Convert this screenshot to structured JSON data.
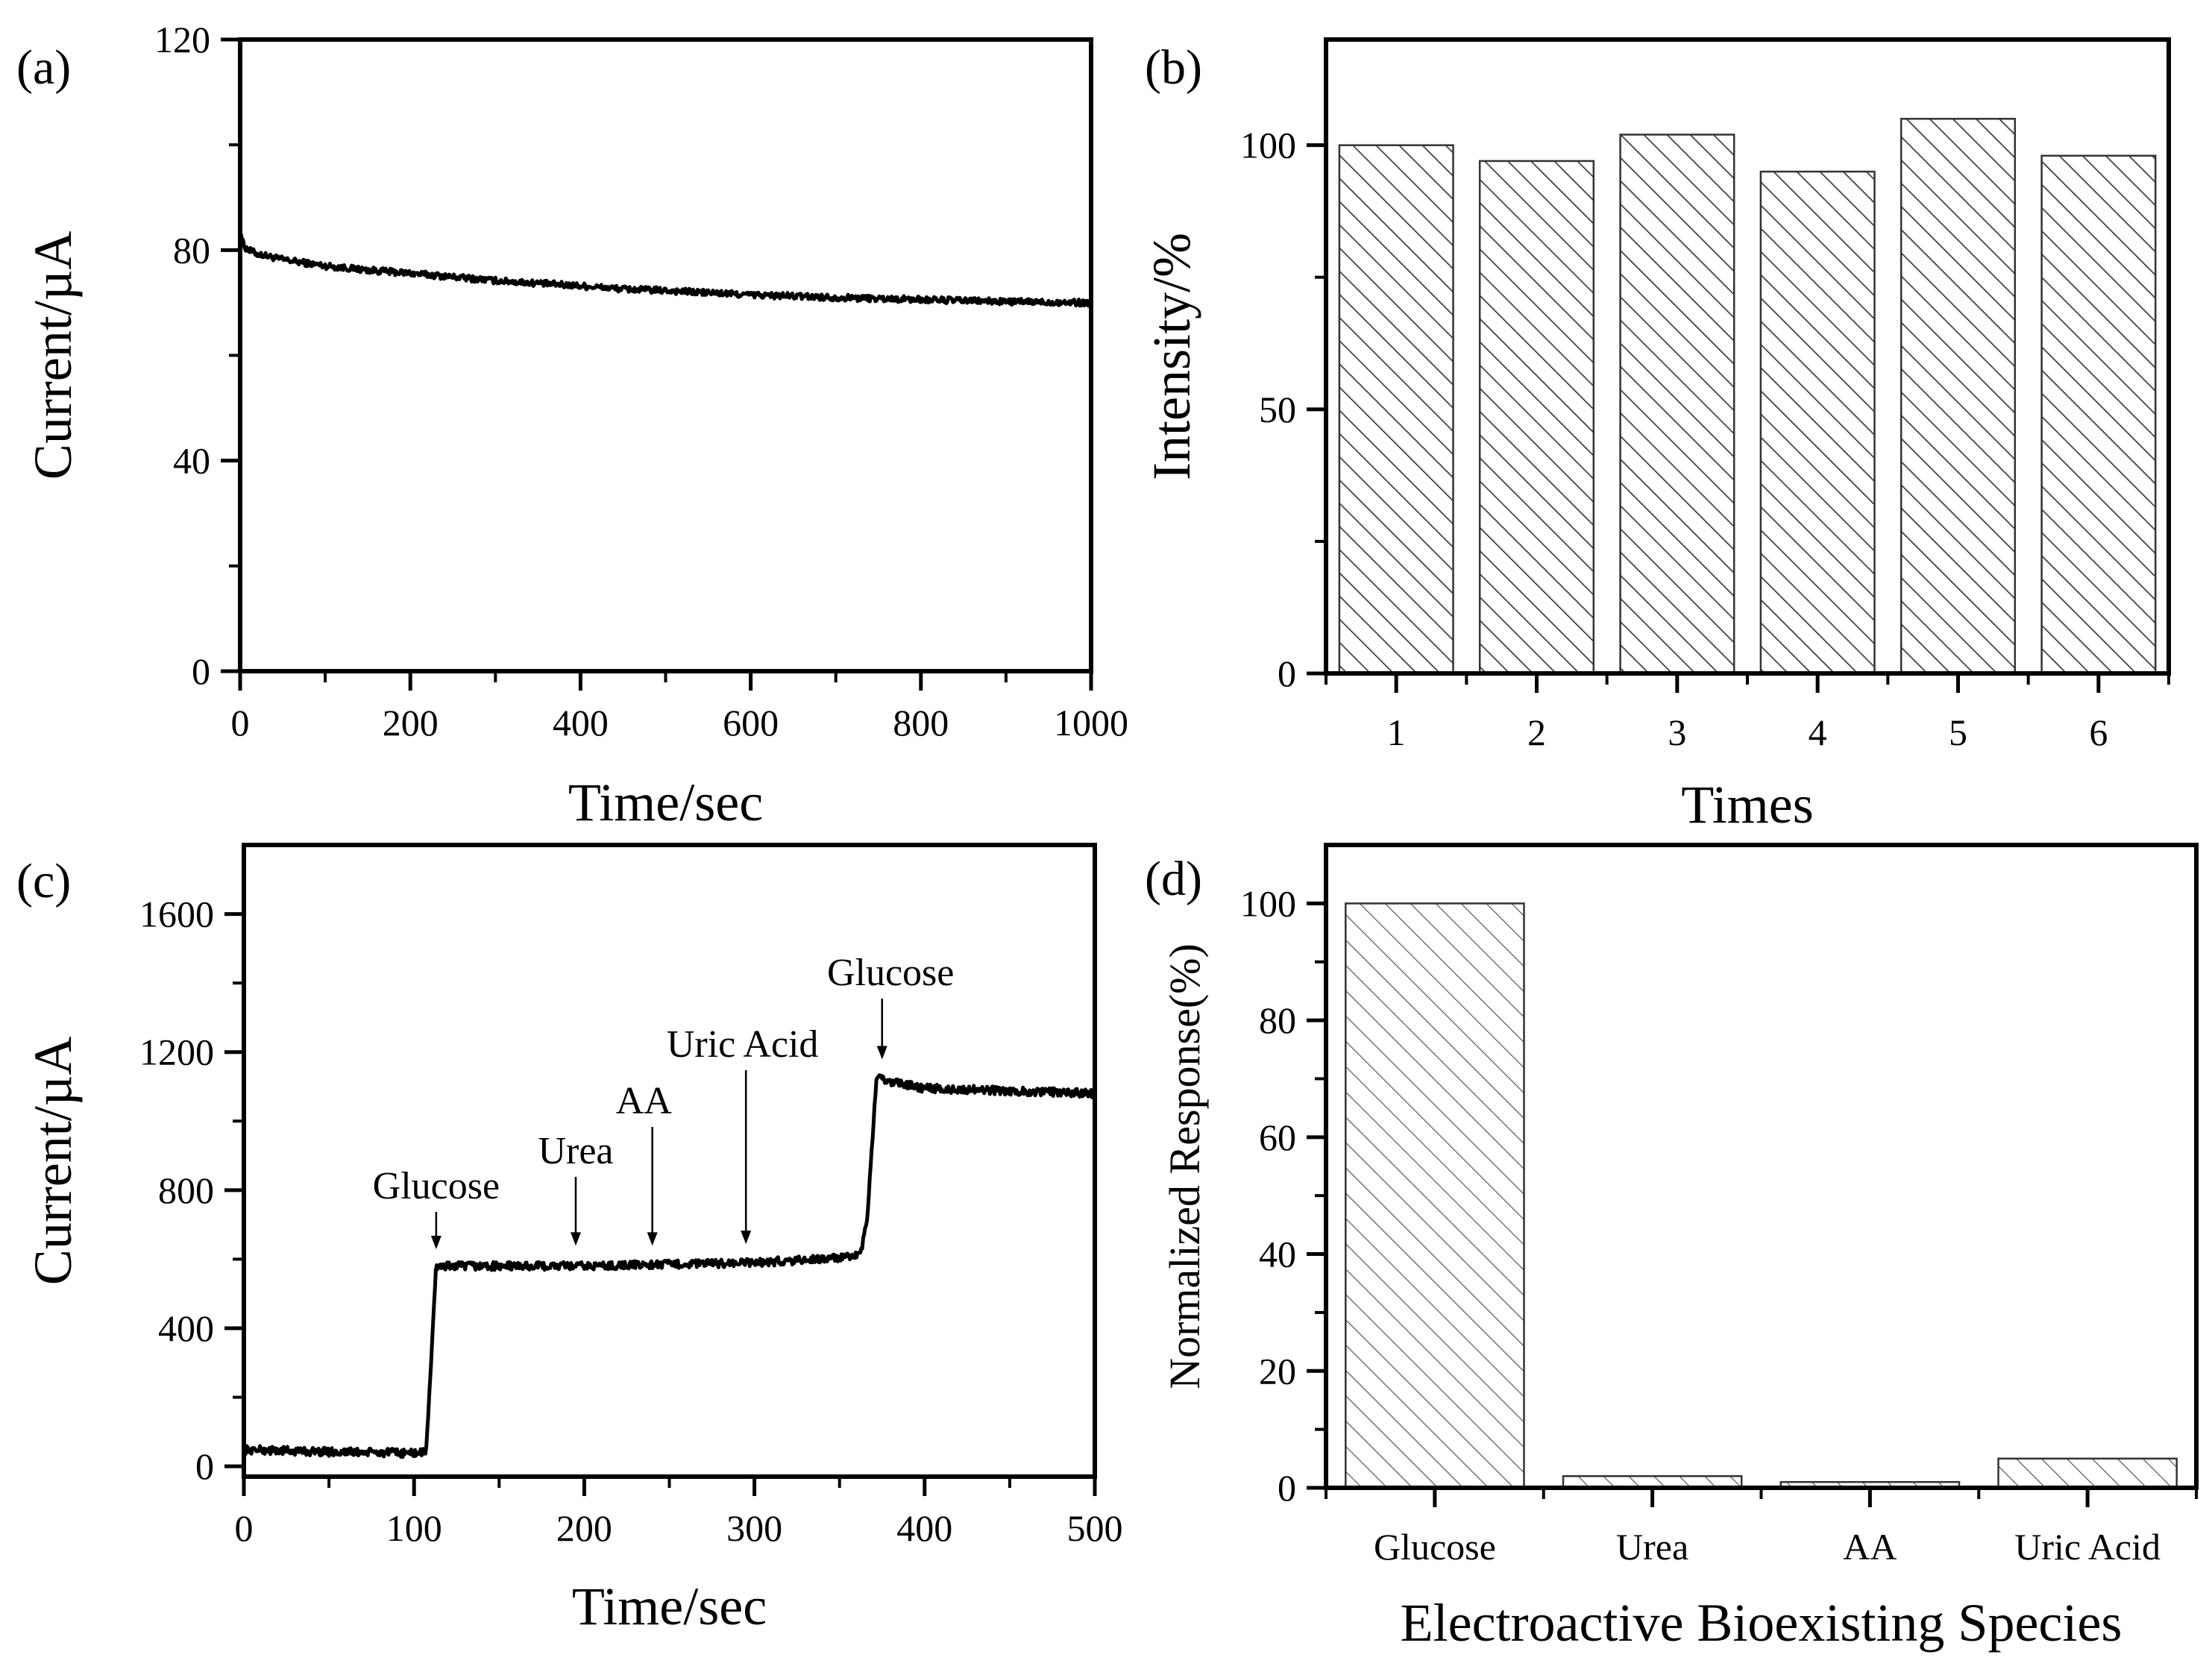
{
  "figure": {
    "title": ""
  },
  "colors": {
    "ink": "#000000",
    "bar_fill": "#ffffff",
    "hatch": "#3a3a3a",
    "light_hatch": "#555555"
  },
  "chart_data": [
    {
      "id": "a",
      "type": "line",
      "panel_label": "(a)",
      "xlabel": "Time/sec",
      "ylabel": "Current/µA",
      "xlim": [
        0,
        1000
      ],
      "ylim": [
        0,
        120
      ],
      "xticks": [
        0,
        200,
        400,
        600,
        800,
        1000
      ],
      "yticks": [
        0,
        40,
        80,
        120
      ],
      "series": [
        {
          "name": "current",
          "x": [
            0,
            3,
            6,
            10,
            20,
            50,
            100,
            150,
            200,
            250,
            300,
            400,
            450,
            500,
            600,
            700,
            800,
            900,
            1000
          ],
          "y": [
            84,
            81.5,
            80.5,
            80,
            79.3,
            78.2,
            77,
            76.2,
            75.6,
            74.9,
            74.2,
            73.2,
            72.6,
            72.3,
            71.5,
            71,
            70.6,
            70.2,
            70
          ],
          "noise": 0.6
        }
      ]
    },
    {
      "id": "b",
      "type": "bar",
      "panel_label": "(b)",
      "xlabel": "Times",
      "ylabel": "Intensity/%",
      "categories": [
        "1",
        "2",
        "3",
        "4",
        "5",
        "6"
      ],
      "values": [
        100,
        97,
        102,
        95,
        105,
        98
      ],
      "ylim": [
        0,
        120
      ],
      "yticks": [
        0,
        50,
        100
      ]
    },
    {
      "id": "c",
      "type": "line",
      "panel_label": "(c)",
      "xlabel": "Time/sec",
      "ylabel": "Current/µA",
      "xlim": [
        0,
        500
      ],
      "ylim": [
        -30,
        1800
      ],
      "xticks": [
        0,
        100,
        200,
        300,
        400,
        500
      ],
      "yticks": [
        0,
        400,
        800,
        1200,
        1600
      ],
      "series": [
        {
          "name": "current",
          "x": [
            0,
            50,
            100,
            107,
            110,
            113,
            200,
            250,
            300,
            355,
            362,
            366,
            370,
            372,
            375,
            400,
            500
          ],
          "y": [
            48,
            42,
            38,
            40,
            300,
            580,
            580,
            585,
            590,
            605,
            610,
            700,
            1000,
            1130,
            1120,
            1095,
            1080
          ],
          "noise": 12
        }
      ],
      "annotations": [
        {
          "text": "Glucose",
          "x": 113,
          "y": 590,
          "label_dx": 0
        },
        {
          "text": "Urea",
          "x": 195,
          "y": 600,
          "label_dx": 0
        },
        {
          "text": "AA",
          "x": 240,
          "y": 600,
          "label_dx": -5
        },
        {
          "text": "Uric Acid",
          "x": 295,
          "y": 605,
          "label_dx": -2
        },
        {
          "text": "Glucose",
          "x": 375,
          "y": 1140,
          "label_dx": 5
        }
      ]
    },
    {
      "id": "d",
      "type": "bar",
      "panel_label": "(d)",
      "xlabel": "Electroactive Bioexisting Species",
      "ylabel": "Normalized Response(%)",
      "categories": [
        "Glucose",
        "Urea",
        "AA",
        "Uric Acid"
      ],
      "values": [
        100,
        2,
        1,
        5
      ],
      "ylim": [
        0,
        110
      ],
      "yticks": [
        0,
        20,
        40,
        60,
        80,
        100
      ]
    }
  ]
}
